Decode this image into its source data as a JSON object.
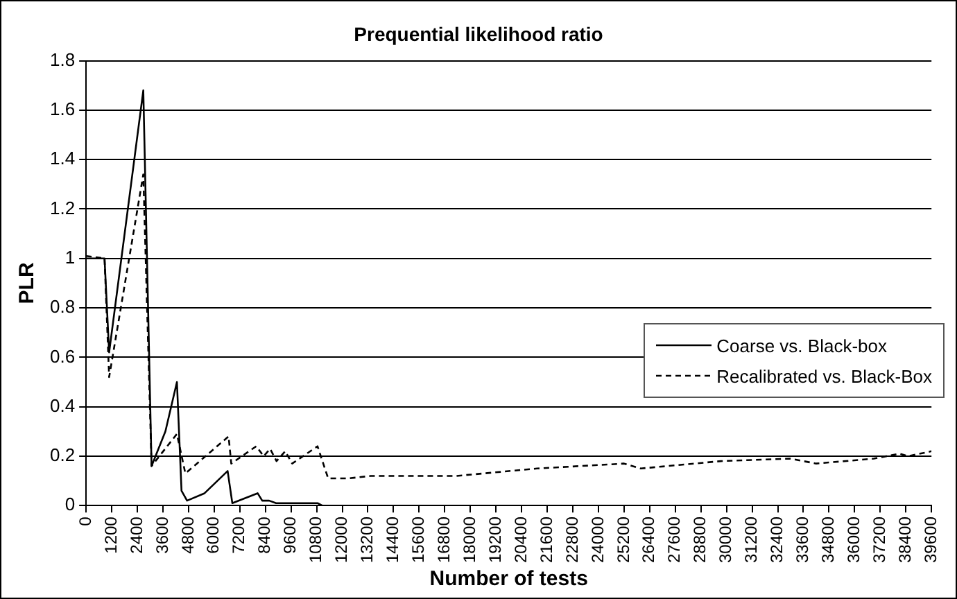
{
  "chart_data": {
    "type": "line",
    "title": "Prequential likelihood ratio",
    "xlabel": "Number of tests",
    "ylabel": "PLR",
    "xlim": [
      0,
      39600
    ],
    "xticks": [
      0,
      1200,
      2400,
      3600,
      4800,
      6000,
      7200,
      8400,
      9600,
      10800,
      12000,
      13200,
      14400,
      15600,
      16800,
      18000,
      19200,
      20400,
      21600,
      22800,
      24000,
      25200,
      26400,
      27600,
      28800,
      30000,
      31200,
      32400,
      33600,
      34800,
      36000,
      37200,
      38400,
      39600
    ],
    "ylim": [
      0,
      1.8
    ],
    "yticks": [
      0,
      0.2,
      0.4,
      0.6,
      0.8,
      1,
      1.2,
      1.4,
      1.6,
      1.8
    ],
    "grid": "y",
    "legend": "right",
    "marker": "none",
    "series": [
      {
        "name": "Coarse vs. Black-box",
        "color": "#000000",
        "line_style": "solid",
        "x": [
          0,
          864,
          1080,
          2680,
          3067,
          3715,
          4255,
          4470,
          4730,
          5550,
          6630,
          6850,
          8035,
          8250,
          8575,
          8900,
          9440,
          10090,
          10840,
          11060,
          39600
        ],
        "values": [
          1,
          1,
          0.62,
          1.68,
          0.16,
          0.3,
          0.5,
          0.06,
          0.02,
          0.05,
          0.14,
          0.01,
          0.05,
          0.02,
          0.02,
          0.01,
          0.01,
          0.01,
          0.01,
          0,
          0
        ]
      },
      {
        "name": "Recalibrated vs. Black-Box",
        "color": "#000000",
        "line_style": "dashed",
        "x": [
          0,
          864,
          1080,
          2680,
          3067,
          4255,
          4650,
          6675,
          6800,
          7970,
          8320,
          8620,
          8920,
          9330,
          9655,
          10840,
          11340,
          12250,
          13330,
          14200,
          15920,
          17340,
          21120,
          25200,
          25980,
          29740,
          32980,
          34200,
          36900,
          38090,
          38520,
          39600
        ],
        "values": [
          1.01,
          1,
          0.52,
          1.34,
          0.16,
          0.29,
          0.13,
          0.28,
          0.17,
          0.24,
          0.2,
          0.23,
          0.18,
          0.22,
          0.17,
          0.24,
          0.11,
          0.11,
          0.12,
          0.12,
          0.12,
          0.12,
          0.15,
          0.17,
          0.15,
          0.18,
          0.19,
          0.17,
          0.19,
          0.21,
          0.2,
          0.22
        ]
      }
    ]
  }
}
